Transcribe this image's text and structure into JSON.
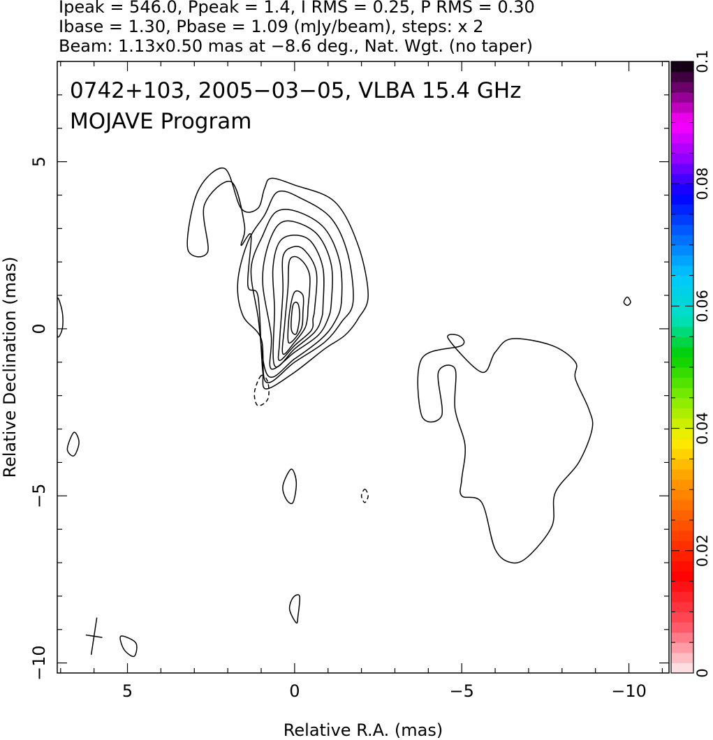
{
  "header": {
    "line1": "Ipeak = 546.0, Ppeak = 1.4, I RMS = 0.25, P RMS = 0.30",
    "line2": "Ibase = 1.30, Pbase = 1.09 (mJy/beam), steps: x 2",
    "line3": "Beam: 1.13x0.50 mas at −8.6 deg., Nat. Wgt. (no taper)"
  },
  "chart_data": {
    "type": "contour",
    "annotation": {
      "line1": "0742+103, 2005−03−05, VLBA 15.4 GHz",
      "line2": "MOJAVE Program"
    },
    "xlabel": "Relative R.A. (mas)",
    "ylabel": "Relative Declination (mas)",
    "xlim": [
      7.1,
      -11.2
    ],
    "ylim": [
      -10.3,
      8.0
    ],
    "x_ticks": [
      {
        "value": 5,
        "label": "5"
      },
      {
        "value": 0,
        "label": "0"
      },
      {
        "value": -5,
        "label": "−5"
      },
      {
        "value": -10,
        "label": "−10"
      }
    ],
    "y_ticks": [
      {
        "value": 5,
        "label": "5"
      },
      {
        "value": 0,
        "label": "0"
      },
      {
        "value": -5,
        "label": "−5"
      },
      {
        "value": -10,
        "label": "−10"
      }
    ],
    "beam": {
      "major_mas": 1.13,
      "minor_mas": 0.5,
      "pa_deg": -8.6,
      "x": 6.0,
      "y": -9.2
    },
    "colorbar": {
      "ticks": [
        {
          "value": 0,
          "label": "0"
        },
        {
          "value": 0.02,
          "label": "0.02"
        },
        {
          "value": 0.04,
          "label": "0.04"
        },
        {
          "value": 0.06,
          "label": "0.06"
        },
        {
          "value": 0.08,
          "label": "0.08"
        },
        {
          "value": 0.1,
          "label": "0.1"
        }
      ],
      "range": [
        0,
        0.1
      ],
      "stops": [
        {
          "v": 0.0,
          "c": "#ffeef0"
        },
        {
          "v": 0.08,
          "c": "#ff5060"
        },
        {
          "v": 0.16,
          "c": "#ff0000"
        },
        {
          "v": 0.25,
          "c": "#ff5a00"
        },
        {
          "v": 0.32,
          "c": "#ffa000"
        },
        {
          "v": 0.38,
          "c": "#ffee00"
        },
        {
          "v": 0.45,
          "c": "#80ee00"
        },
        {
          "v": 0.52,
          "c": "#00d000"
        },
        {
          "v": 0.58,
          "c": "#00e0c0"
        },
        {
          "v": 0.65,
          "c": "#00c8ff"
        },
        {
          "v": 0.72,
          "c": "#0060ff"
        },
        {
          "v": 0.78,
          "c": "#0000ff"
        },
        {
          "v": 0.84,
          "c": "#9000ff"
        },
        {
          "v": 0.9,
          "c": "#ff00ff"
        },
        {
          "v": 0.95,
          "c": "#800080"
        },
        {
          "v": 1.0,
          "c": "#000000"
        }
      ]
    },
    "contours": [
      {
        "name": "core-level-1",
        "dashed": false,
        "points": [
          [
            -2.2,
            1.0
          ],
          [
            -1.9,
            2.5
          ],
          [
            -1.2,
            3.8
          ],
          [
            0,
            4.3
          ],
          [
            0.7,
            4.5
          ],
          [
            0.9,
            4.2
          ],
          [
            1.1,
            3.6
          ],
          [
            1.6,
            3.6
          ],
          [
            2.1,
            4.8
          ],
          [
            2.9,
            4.1
          ],
          [
            3.2,
            2.4
          ],
          [
            2.6,
            2.3
          ],
          [
            2.7,
            3.7
          ],
          [
            1.9,
            4.4
          ],
          [
            1.5,
            3.1
          ],
          [
            1.6,
            2.5
          ],
          [
            1.3,
            2.8
          ],
          [
            1.4,
            1.3
          ],
          [
            1.1,
            1.0
          ],
          [
            1.0,
            -0.6
          ],
          [
            0.95,
            -1.3
          ],
          [
            0.85,
            -1.8
          ],
          [
            0,
            -1.3
          ],
          [
            -0.9,
            -0.6
          ],
          [
            -1.5,
            -0.2
          ],
          [
            -1.9,
            0.3
          ]
        ]
      },
      {
        "name": "core-level-2",
        "dashed": false,
        "points": [
          [
            -1.75,
            0.8
          ],
          [
            -1.6,
            2.2
          ],
          [
            -1.1,
            3.3
          ],
          [
            -0.2,
            3.9
          ],
          [
            0.5,
            4.1
          ],
          [
            0.9,
            3.4
          ],
          [
            1.4,
            2.6
          ],
          [
            1.7,
            1.4
          ],
          [
            1.55,
            0.4
          ],
          [
            1.0,
            -0.3
          ],
          [
            0.85,
            -1.6
          ],
          [
            0,
            -1.0
          ],
          [
            -0.9,
            -0.4
          ],
          [
            -1.4,
            0.2
          ]
        ]
      },
      {
        "name": "core-level-3",
        "dashed": false,
        "points": [
          [
            -1.4,
            0.8
          ],
          [
            -1.35,
            2.0
          ],
          [
            -0.9,
            3.0
          ],
          [
            -0.1,
            3.5
          ],
          [
            0.55,
            3.5
          ],
          [
            0.95,
            2.8
          ],
          [
            1.3,
            1.8
          ],
          [
            1.1,
            0.4
          ],
          [
            0.8,
            -1.4
          ],
          [
            0,
            -0.9
          ],
          [
            -0.8,
            -0.3
          ],
          [
            -1.2,
            0.2
          ]
        ]
      },
      {
        "name": "core-level-4",
        "dashed": false,
        "points": [
          [
            -1.1,
            0.8
          ],
          [
            -1.1,
            1.9
          ],
          [
            -0.7,
            2.8
          ],
          [
            0,
            3.2
          ],
          [
            0.5,
            3.1
          ],
          [
            0.85,
            2.3
          ],
          [
            0.95,
            1.3
          ],
          [
            0.7,
            -0.2
          ],
          [
            0.7,
            -1.2
          ],
          [
            0,
            -0.7
          ],
          [
            -0.7,
            -0.2
          ],
          [
            -1.0,
            0.3
          ]
        ]
      },
      {
        "name": "core-level-5",
        "dashed": false,
        "points": [
          [
            -0.85,
            0.7
          ],
          [
            -0.85,
            1.8
          ],
          [
            -0.5,
            2.6
          ],
          [
            0,
            2.8
          ],
          [
            0.45,
            2.6
          ],
          [
            0.65,
            1.8
          ],
          [
            0.6,
            0.6
          ],
          [
            0.6,
            -1.1
          ],
          [
            0,
            -0.6
          ],
          [
            -0.6,
            -0.1
          ],
          [
            -0.8,
            0.3
          ]
        ]
      },
      {
        "name": "core-level-6",
        "dashed": false,
        "points": [
          [
            -0.6,
            0.6
          ],
          [
            -0.65,
            1.7
          ],
          [
            -0.3,
            2.35
          ],
          [
            0.05,
            2.45
          ],
          [
            0.35,
            2.15
          ],
          [
            0.35,
            1.1
          ],
          [
            0.45,
            -0.4
          ],
          [
            0.45,
            -0.95
          ],
          [
            0,
            -0.5
          ],
          [
            -0.5,
            -0.05
          ],
          [
            -0.55,
            0.3
          ]
        ]
      },
      {
        "name": "core-level-7",
        "dashed": false,
        "points": [
          [
            -0.4,
            0.6
          ],
          [
            -0.45,
            1.6
          ],
          [
            -0.15,
            2.1
          ],
          [
            0.15,
            2.05
          ],
          [
            0.2,
            1.2
          ],
          [
            0.3,
            0.1
          ],
          [
            0.35,
            -0.75
          ],
          [
            0,
            -0.4
          ],
          [
            -0.3,
            0
          ],
          [
            -0.38,
            0.3
          ]
        ]
      },
      {
        "name": "core-level-8",
        "dashed": false,
        "points": [
          [
            -0.25,
            0.5
          ],
          [
            -0.25,
            1.0
          ],
          [
            0,
            1.1
          ],
          [
            0.15,
            0.5
          ],
          [
            0.2,
            -0.3
          ],
          [
            0.1,
            -0.4
          ],
          [
            -0.2,
            0
          ]
        ]
      },
      {
        "name": "core-level-9",
        "dashed": false,
        "points": [
          [
            -0.15,
            0.35
          ],
          [
            -0.1,
            0.75
          ],
          [
            0.05,
            0.7
          ],
          [
            0.1,
            0.0
          ],
          [
            -0.05,
            -0.15
          ]
        ]
      },
      {
        "name": "island-left-edge",
        "dashed": false,
        "points": [
          [
            7.1,
            0.9
          ],
          [
            6.95,
            0.5
          ],
          [
            6.95,
            0
          ],
          [
            7.1,
            -0.2
          ]
        ]
      },
      {
        "name": "island-left-lower",
        "dashed": false,
        "points": [
          [
            6.6,
            -3.1
          ],
          [
            6.8,
            -3.6
          ],
          [
            6.6,
            -3.8
          ],
          [
            6.45,
            -3.4
          ]
        ]
      },
      {
        "name": "island-beam-corner",
        "dashed": false,
        "points": [
          [
            4.75,
            -9.4
          ],
          [
            5.2,
            -9.2
          ],
          [
            5.1,
            -9.6
          ],
          [
            4.8,
            -9.8
          ]
        ]
      },
      {
        "name": "island-small-center",
        "dashed": false,
        "points": [
          [
            0.1,
            -4.2
          ],
          [
            0.35,
            -4.7
          ],
          [
            0.25,
            -5.1
          ],
          [
            0.05,
            -5.2
          ],
          [
            -0.05,
            -4.6
          ]
        ]
      },
      {
        "name": "island-lower-center",
        "dashed": false,
        "points": [
          [
            -0.15,
            -8.0
          ],
          [
            -0.1,
            -8.6
          ],
          [
            -0.05,
            -8.8
          ],
          [
            0.15,
            -8.4
          ],
          [
            0.05,
            -8.05
          ]
        ]
      },
      {
        "name": "island-right-small",
        "dashed": false,
        "points": [
          [
            -9.95,
            0.95
          ],
          [
            -10.05,
            0.8
          ],
          [
            -9.95,
            0.7
          ],
          [
            -9.85,
            0.8
          ]
        ]
      },
      {
        "name": "dashed-near-core",
        "dashed": true,
        "points": [
          [
            1.0,
            -1.4
          ],
          [
            1.2,
            -1.9
          ],
          [
            1.1,
            -2.3
          ],
          [
            0.8,
            -2.1
          ],
          [
            0.8,
            -1.6
          ]
        ]
      },
      {
        "name": "dashed-small-right",
        "dashed": true,
        "points": [
          [
            -2.1,
            -4.8
          ],
          [
            -2.2,
            -5.0
          ],
          [
            -2.1,
            -5.2
          ],
          [
            -2.0,
            -5.0
          ]
        ]
      },
      {
        "name": "extended-jet-lobe",
        "dashed": false,
        "points": [
          [
            -4.6,
            -0.3
          ],
          [
            -4.9,
            -0.2
          ],
          [
            -5.0,
            -0.5
          ],
          [
            -3.8,
            -0.9
          ],
          [
            -3.8,
            -2.6
          ],
          [
            -4.4,
            -2.6
          ],
          [
            -4.3,
            -1.3
          ],
          [
            -4.8,
            -1.2
          ],
          [
            -4.8,
            -2.4
          ],
          [
            -5.1,
            -3.5
          ],
          [
            -5.0,
            -4.5
          ],
          [
            -5.0,
            -5.0
          ],
          [
            -5.6,
            -5.2
          ],
          [
            -6.0,
            -6.6
          ],
          [
            -6.5,
            -7.0
          ],
          [
            -7.0,
            -6.8
          ],
          [
            -7.7,
            -5.9
          ],
          [
            -7.8,
            -4.9
          ],
          [
            -8.5,
            -4.0
          ],
          [
            -8.9,
            -3.0
          ],
          [
            -8.8,
            -2.4
          ],
          [
            -8.4,
            -1.5
          ],
          [
            -8.4,
            -1.0
          ],
          [
            -7.7,
            -0.5
          ],
          [
            -6.5,
            -0.3
          ],
          [
            -6.0,
            -0.7
          ],
          [
            -5.6,
            -1.3
          ]
        ]
      }
    ]
  }
}
